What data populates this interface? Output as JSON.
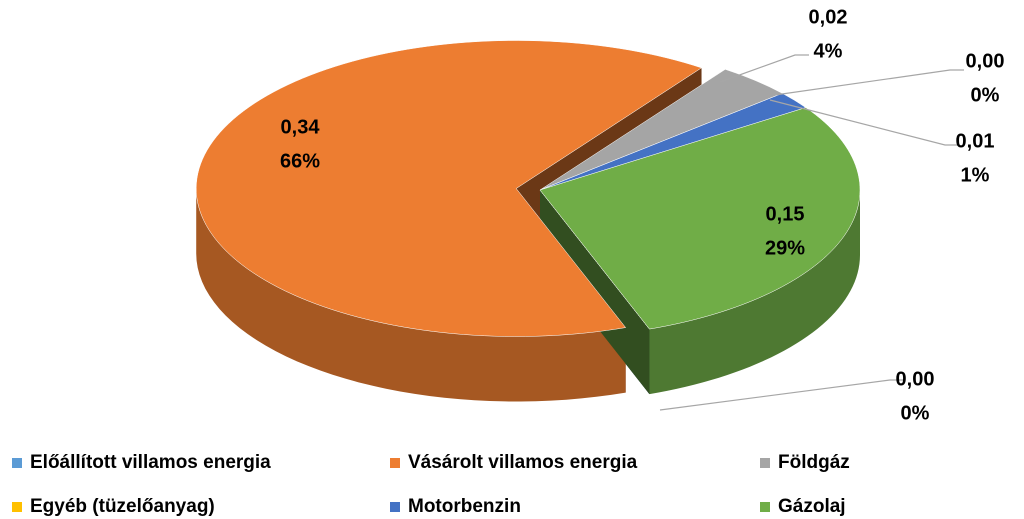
{
  "chart_data": {
    "type": "pie",
    "categories": [
      "Előállított villamos energia",
      "Vásárolt villamos energia",
      "Földgáz",
      "Egyéb (tüzelőanyag)",
      "Motorbenzin",
      "Gázolaj"
    ],
    "values": [
      0.0,
      0.34,
      0.02,
      0.0,
      0.01,
      0.15
    ],
    "value_labels": [
      "0,00",
      "0,34",
      "0,02",
      "0,00",
      "0,01",
      "0,15"
    ],
    "percents": [
      0,
      66,
      4,
      0,
      1,
      29
    ],
    "percent_labels": [
      "0%",
      "66%",
      "4%",
      "0%",
      "1%",
      "29%"
    ],
    "colors": [
      "#5b9bd5",
      "#ed7d31",
      "#a5a5a5",
      "#ffc000",
      "#4472c4",
      "#70ad47"
    ],
    "legend": "bottom"
  }
}
